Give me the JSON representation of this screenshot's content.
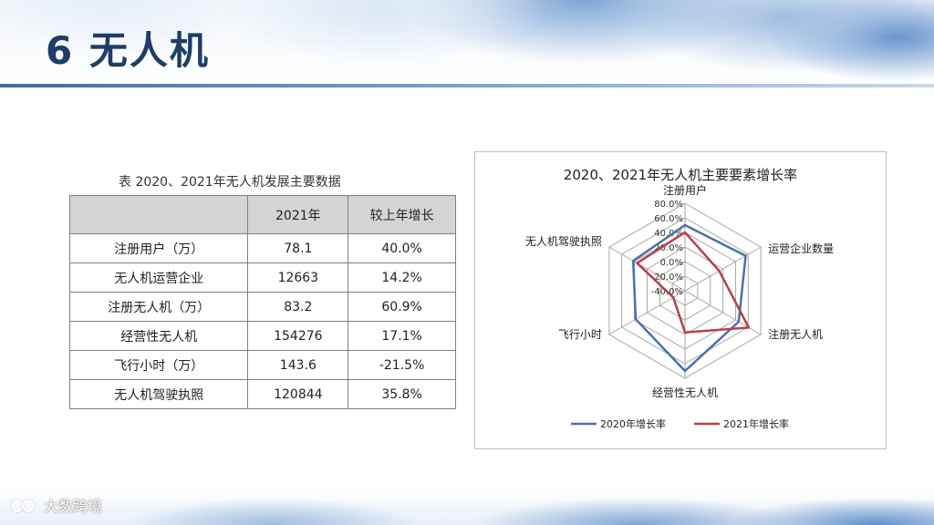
{
  "slide": {
    "title": "6 无人机",
    "watermark": "大数跨境"
  },
  "table": {
    "caption": "表 2020、2021年无人机发展主要数据",
    "headers": [
      "",
      "2021年",
      "较上年增长"
    ],
    "rows": [
      [
        "注册用户（万）",
        "78.1",
        "40.0%"
      ],
      [
        "无人机运营企业",
        "12663",
        "14.2%"
      ],
      [
        "注册无人机（万）",
        "83.2",
        "60.9%"
      ],
      [
        "经营性无人机",
        "154276",
        "17.1%"
      ],
      [
        "飞行小时（万）",
        "143.6",
        "-21.5%"
      ],
      [
        "无人机驾驶执照",
        "120844",
        "35.8%"
      ]
    ]
  },
  "chart_data": {
    "type": "radar",
    "title": "2020、2021年无人机主要要素增长率",
    "categories": [
      "注册用户",
      "运营企业数量",
      "注册无人机",
      "经营性无人机",
      "飞行小时",
      "无人机驾驶执照"
    ],
    "tick_labels": [
      "80.0%",
      "60.0%",
      "40.0%",
      "20.0%",
      "0.0%",
      "-20.0%",
      "-40.0%"
    ],
    "range": [
      -40,
      80
    ],
    "ticks": [
      -40,
      -20,
      0,
      20,
      40,
      60,
      80
    ],
    "series": [
      {
        "name": "2020年增长率",
        "color": "#4a72a8",
        "values": [
          50,
          56,
          45,
          70,
          38,
          42
        ]
      },
      {
        "name": "2021年增长率",
        "color": "#b4424a",
        "values": [
          40.0,
          14.2,
          60.9,
          17.1,
          -21.5,
          35.8
        ]
      }
    ],
    "legend_position": "bottom",
    "grid": true
  }
}
